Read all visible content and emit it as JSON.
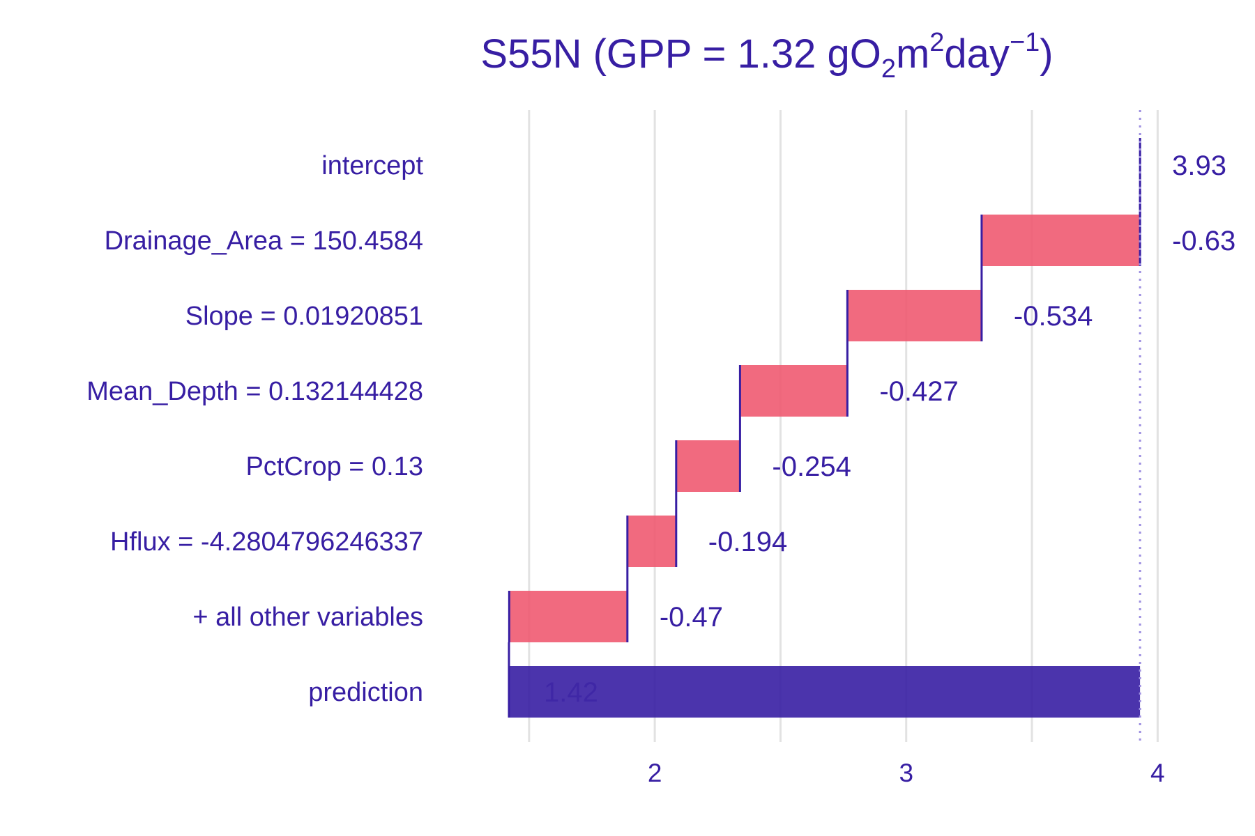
{
  "chart_data": {
    "type": "waterfall",
    "title": {
      "prefix": "S55N (GPP = 1.32 gO",
      "sub": "2",
      "mid": "m",
      "sup": "2",
      "mid2": "day",
      "sup2": "−1",
      "suffix": ")"
    },
    "categories": [
      "intercept",
      "Drainage_Area = 150.4584",
      "Slope = 0.01920851",
      "Mean_Depth = 0.132144428",
      "PctCrop = 0.13",
      "Hflux = -4.2804796246337",
      "+ all other variables",
      "prediction"
    ],
    "contributions": [
      3.93,
      -0.63,
      -0.534,
      -0.427,
      -0.254,
      -0.194,
      -0.47,
      1.42
    ],
    "value_labels": [
      "3.93",
      "-0.63",
      "-0.534",
      "-0.427",
      "-0.254",
      "-0.194",
      "-0.47",
      "1.42"
    ],
    "xlim": [
      1.42,
      3.93
    ],
    "x_ticks": [
      {
        "value": 2,
        "label": "2"
      },
      {
        "value": 3,
        "label": "3"
      },
      {
        "value": 4,
        "label": "4"
      }
    ],
    "minor_gridlines": [
      1.5,
      2.5,
      3.5
    ],
    "reference_line": 3.93,
    "grid": true,
    "colors": {
      "negative": "#f05a71",
      "prediction": "#371ea3",
      "text": "#371ea3",
      "grid": "#e2e2e2",
      "reference": "#9c8ee0"
    }
  }
}
